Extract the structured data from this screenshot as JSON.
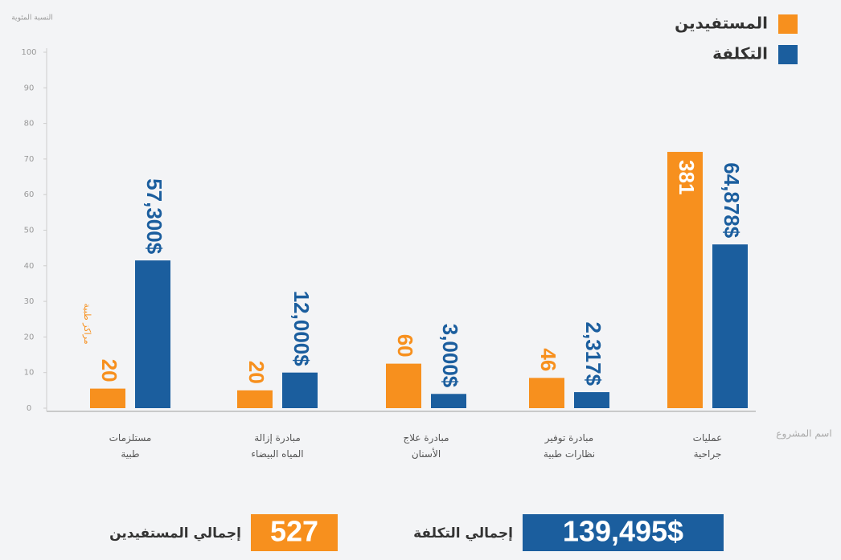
{
  "chart_data": {
    "type": "bar",
    "y_axis_title": "النسبة المئوية",
    "x_axis_title": "اسم المشروع",
    "categories": [
      "مستلزمات طبية",
      "مبادرة إزالة المياه البيضاء",
      "مبادرة علاج الأسنان",
      "مبادرة توفير نظارات طبية",
      "عمليات جراحية"
    ],
    "series": [
      {
        "name": "المستفيدين",
        "color": "#f7901e",
        "values": [
          5.5,
          5,
          12.5,
          8.5,
          72
        ],
        "labels": [
          "20",
          "20",
          "60",
          "46",
          "381"
        ]
      },
      {
        "name": "التكلفة",
        "color": "#1b5e9e",
        "values": [
          41.5,
          10,
          4,
          4.5,
          46
        ],
        "labels": [
          "57,300$",
          "12,000$",
          "3,000$",
          "2,317$",
          "64,878$"
        ]
      }
    ],
    "annotation": "مراكز طبية",
    "ylim": [
      0,
      100
    ],
    "yticks": [
      0,
      10,
      20,
      30,
      40,
      50,
      60,
      70,
      80,
      90,
      100
    ],
    "legend": "top-right",
    "totals": [
      {
        "label": "إجمالي المستفيدين",
        "value": "527",
        "color": "#f7901e"
      },
      {
        "label": "إجمالي التكلفة",
        "value": "139,495$",
        "color": "#1b5e9e"
      }
    ]
  }
}
